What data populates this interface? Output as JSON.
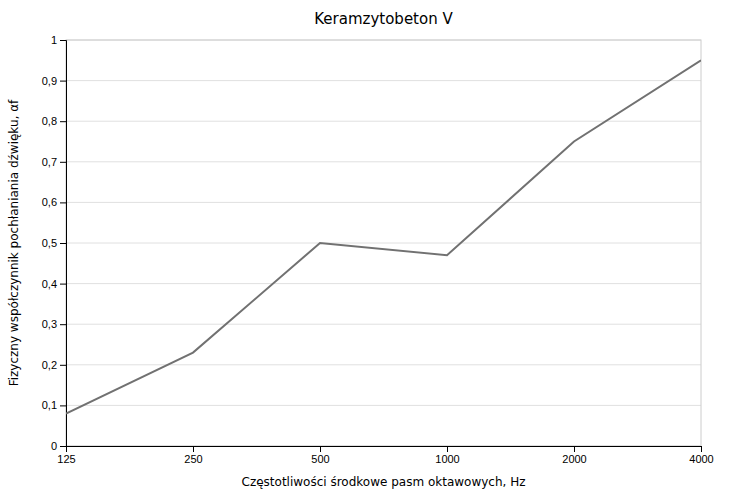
{
  "chart_data": {
    "type": "line",
    "title": "Keramzytobeton V",
    "xlabel": "Częstotliwości środkowe pasm oktawowych, Hz",
    "ylabel": "Fizyczny współczynnik pochłaniania dźwięku, αf",
    "x": [
      125,
      250,
      500,
      1000,
      2000,
      4000
    ],
    "values": [
      0.08,
      0.23,
      0.5,
      0.47,
      0.75,
      0.95
    ],
    "color": "#717171",
    "log": "x",
    "xlim": [
      125,
      4000
    ],
    "xticks": [
      125,
      250,
      500,
      1000,
      2000,
      4000
    ],
    "ylim": [
      0,
      1.0
    ],
    "yticks": [
      0,
      {
        "value": 0.1,
        "label": "0,1"
      },
      {
        "value": 0.2,
        "label": "0,2"
      },
      {
        "value": 0.3,
        "label": "0,3"
      },
      {
        "value": 0.4,
        "label": "0,4"
      },
      {
        "value": 0.5,
        "label": "0,5"
      },
      {
        "value": 0.6,
        "label": "0,6"
      },
      {
        "value": 0.7,
        "label": "0,7"
      },
      {
        "value": 0.8,
        "label": "0,8"
      },
      {
        "value": 0.9,
        "label": "0,9"
      },
      1
    ],
    "grid": true
  }
}
